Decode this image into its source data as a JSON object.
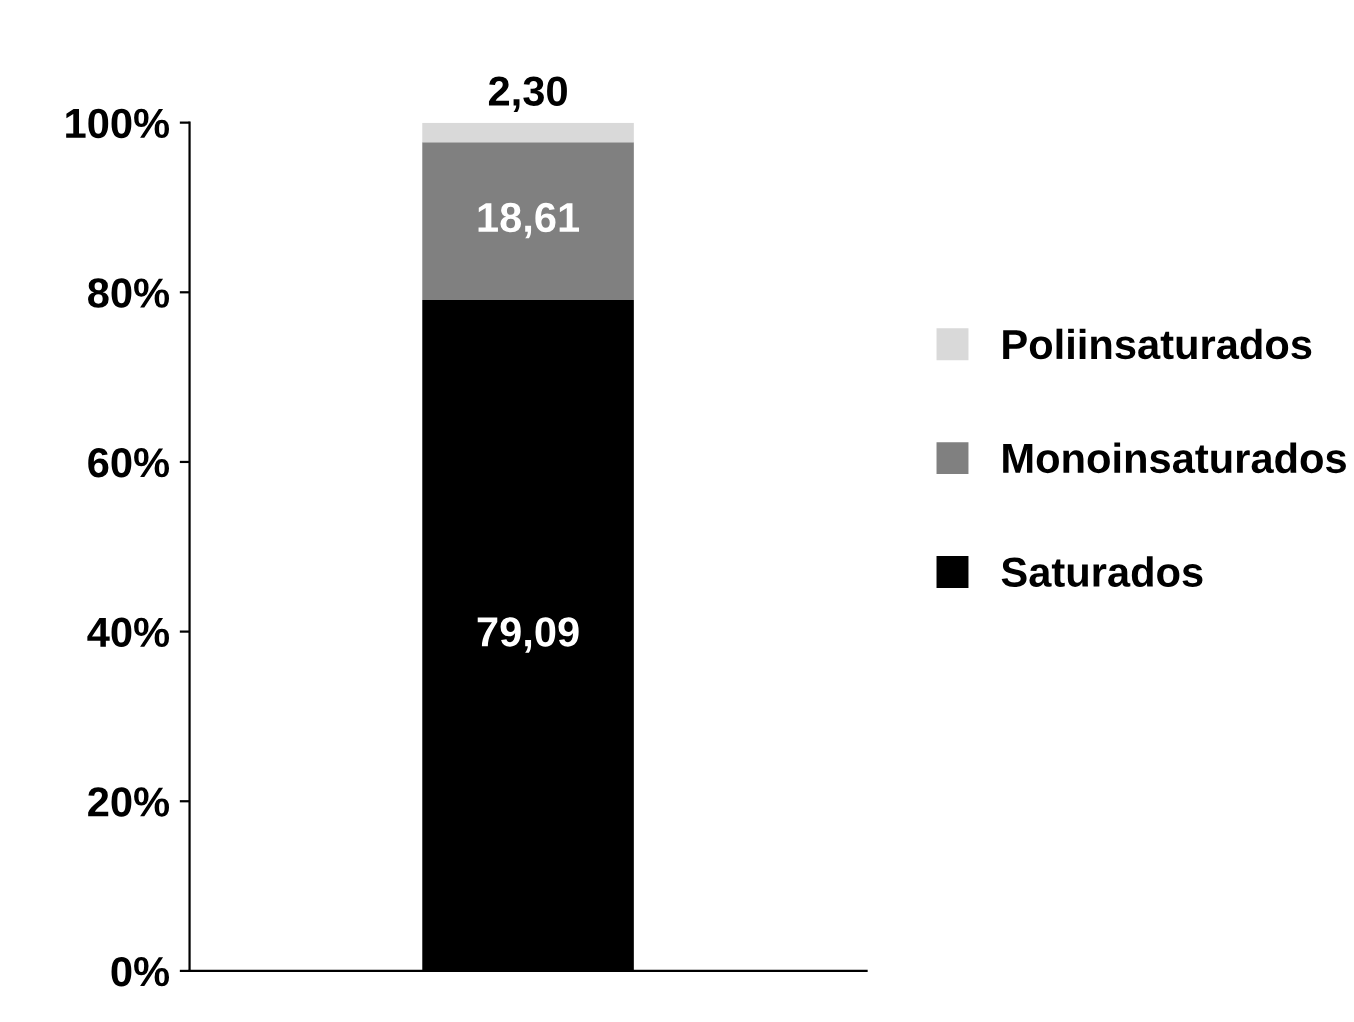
{
  "chart_data": {
    "type": "bar",
    "stacked": true,
    "categories": [
      null
    ],
    "series": [
      {
        "name": "Saturados",
        "color": "#000000",
        "values": [
          79.09
        ],
        "value_labels": [
          "79,09"
        ]
      },
      {
        "name": "Monoinsaturados",
        "color": "#808080",
        "values": [
          18.61
        ],
        "value_labels": [
          "18,61"
        ]
      },
      {
        "name": "Poliinsaturados",
        "color": "#d9d9d9",
        "values": [
          2.3
        ],
        "value_labels": [
          "2,30"
        ]
      }
    ],
    "ylim": [
      0,
      100
    ],
    "yticks": [
      {
        "value": 0,
        "label": "0%"
      },
      {
        "value": 20,
        "label": "20%"
      },
      {
        "value": 40,
        "label": "40%"
      },
      {
        "value": 60,
        "label": "60%"
      },
      {
        "value": 80,
        "label": "80%"
      },
      {
        "value": 100,
        "label": "100%"
      }
    ],
    "legend": "right",
    "grid": false
  }
}
